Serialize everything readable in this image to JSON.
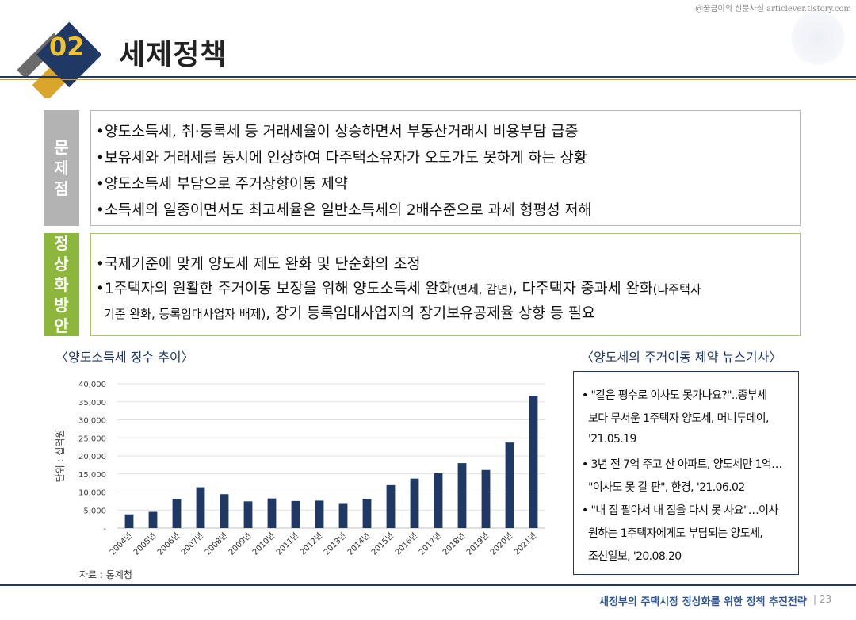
{
  "watermark": "@꿈금이의 신문사설 articlever.tistory.com",
  "header": {
    "number": "02",
    "title": "세제정책"
  },
  "problem": {
    "label_chars": [
      "문",
      "제",
      "점"
    ],
    "items": [
      "•양도소득세, 취·등록세 등 거래세율이 상승하면서 부동산거래시 비용부담 급증",
      "•보유세와 거래세를 동시에 인상하여 다주택소유자가 오도가도 못하게 하는 상황",
      "•양도소득세 부담으로 주거상향이동 제약",
      "•소득세의 일종이면서도 최고세율은 일반소득세의 2배수준으로 과세 형평성 저해"
    ]
  },
  "solution": {
    "label_chars": [
      "정",
      "상",
      "화",
      "방",
      "안"
    ],
    "item1": "•국제기준에 맞게 양도세 제도 완화 및 단순화의 조정",
    "item2a": "•1주택자의 원활한 주거이동 보장을 위해 양도소득세 완화",
    "item2b": "(면제, 감면)",
    "item2c": ", 다주택자 중과세 완화",
    "item2d": "(다주택자",
    "item3a": "기준 완화, 등록임대사업자 배제)",
    "item3b": ", 장기 등록임대사업지의 장기보유공제율 상향 등 필요"
  },
  "chart_section_title": "〈양도소득세 징수 추이〉",
  "news_section_title": "〈양도세의 주거이동 제약 뉴스기사〉",
  "chart_data": {
    "type": "bar",
    "categories": [
      "2004년",
      "2005년",
      "2006년",
      "2007년",
      "2008년",
      "2009년",
      "2010년",
      "2011년",
      "2012년",
      "2013년",
      "2014년",
      "2015년",
      "2016년",
      "2017년",
      "2018년",
      "2019년",
      "2020년",
      "2021년"
    ],
    "values": [
      3800,
      4500,
      8000,
      11300,
      9400,
      7400,
      8200,
      7500,
      7600,
      6700,
      8100,
      11900,
      13700,
      15200,
      18000,
      16100,
      23700,
      36700
    ],
    "ylabel": "단위 : 십억원",
    "ylim": [
      0,
      40000
    ],
    "yticks": [
      "-",
      "5,000",
      "10,000",
      "15,000",
      "20,000",
      "25,000",
      "30,000",
      "35,000",
      "40,000"
    ],
    "bar_color": "#1f3864",
    "grid": true
  },
  "source": "자료 : 통계청",
  "news": {
    "lines": [
      "• \"같은 평수로 이사도 못가나요?\"..종부세",
      "보다 무서운 1주택자 양도세, 머니투데이,",
      "'21.05.19",
      "• 3년 전 7억 주고 산 아파트, 양도세만 1억…",
      "\"이사도 못 갈 판\", 한경, '21.06.02",
      "• \"내 집 팔아서 내 집을 다시 못 사요\"…이사",
      "원하는 1주택자에게도 부담되는 양도세,",
      "조선일보, '20.08.20"
    ]
  },
  "footer": {
    "text": "새정부의 주택시장 정상화를 위한 정책 추진전략",
    "page": "| 23"
  }
}
